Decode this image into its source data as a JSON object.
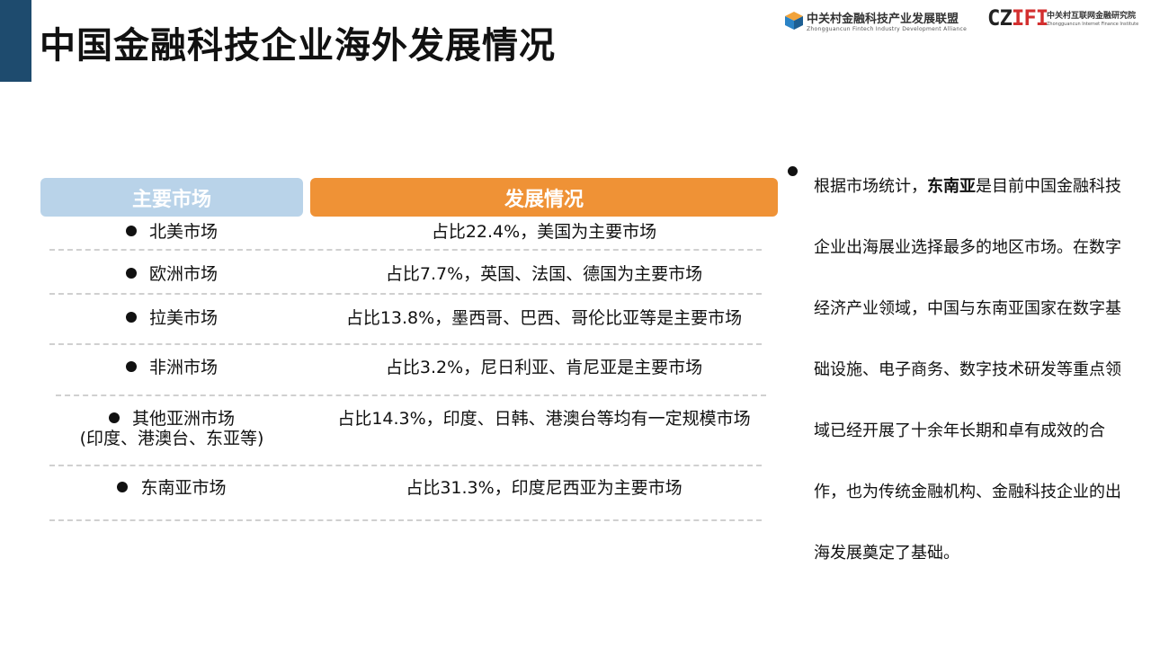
{
  "title": "中国金融科技企业海外发展情况",
  "logos": {
    "zfida_cn": "中关村金融科技产业发展联盟",
    "zfida_en": "Zhongguancun Fintech Industry Development Alliance",
    "czifi_mark_a": "CZ",
    "czifi_mark_b": "IFI",
    "czifi_cn": "中关村互联网金融研究院",
    "czifi_en": "Zhongguancun Internet Finance Institute"
  },
  "table": {
    "headers": [
      "主要市场",
      "发展情况"
    ],
    "rows": [
      {
        "market": "北美市场",
        "market_sub": "",
        "status": "占比22.4%，美国为主要市场"
      },
      {
        "market": "欧洲市场",
        "market_sub": "",
        "status": "占比7.7%，英国、法国、德国为主要市场"
      },
      {
        "market": "拉美市场",
        "market_sub": "",
        "status": "占比13.8%，墨西哥、巴西、哥伦比亚等是主要市场"
      },
      {
        "market": "非洲市场",
        "market_sub": "",
        "status": "占比3.2%，尼日利亚、肯尼亚是主要市场"
      },
      {
        "market": "其他亚洲市场",
        "market_sub": "(印度、港澳台、东亚等)",
        "status": "占比14.3%，印度、日韩、港澳台等均有一定规模市场"
      },
      {
        "market": "东南亚市场",
        "market_sub": "",
        "status": "占比31.3%，印度尼西亚为主要市场"
      }
    ]
  },
  "summary": {
    "prefix": "根据市场统计，",
    "highlight": "东南亚",
    "rest": "是目前中国金融科技企业出海展业选择最多的地区市场。在数字经济产业领域，中国与东南亚国家在数字基础设施、电子商务、数字技术研发等重点领域已经开展了十余年长期和卓有成效的合作，也为传统金融机构、金融科技企业的出海发展奠定了基础。"
  },
  "colors": {
    "accent": "#1e4b6e",
    "header_market": "#b9d3e9",
    "header_status": "#ef9236"
  }
}
